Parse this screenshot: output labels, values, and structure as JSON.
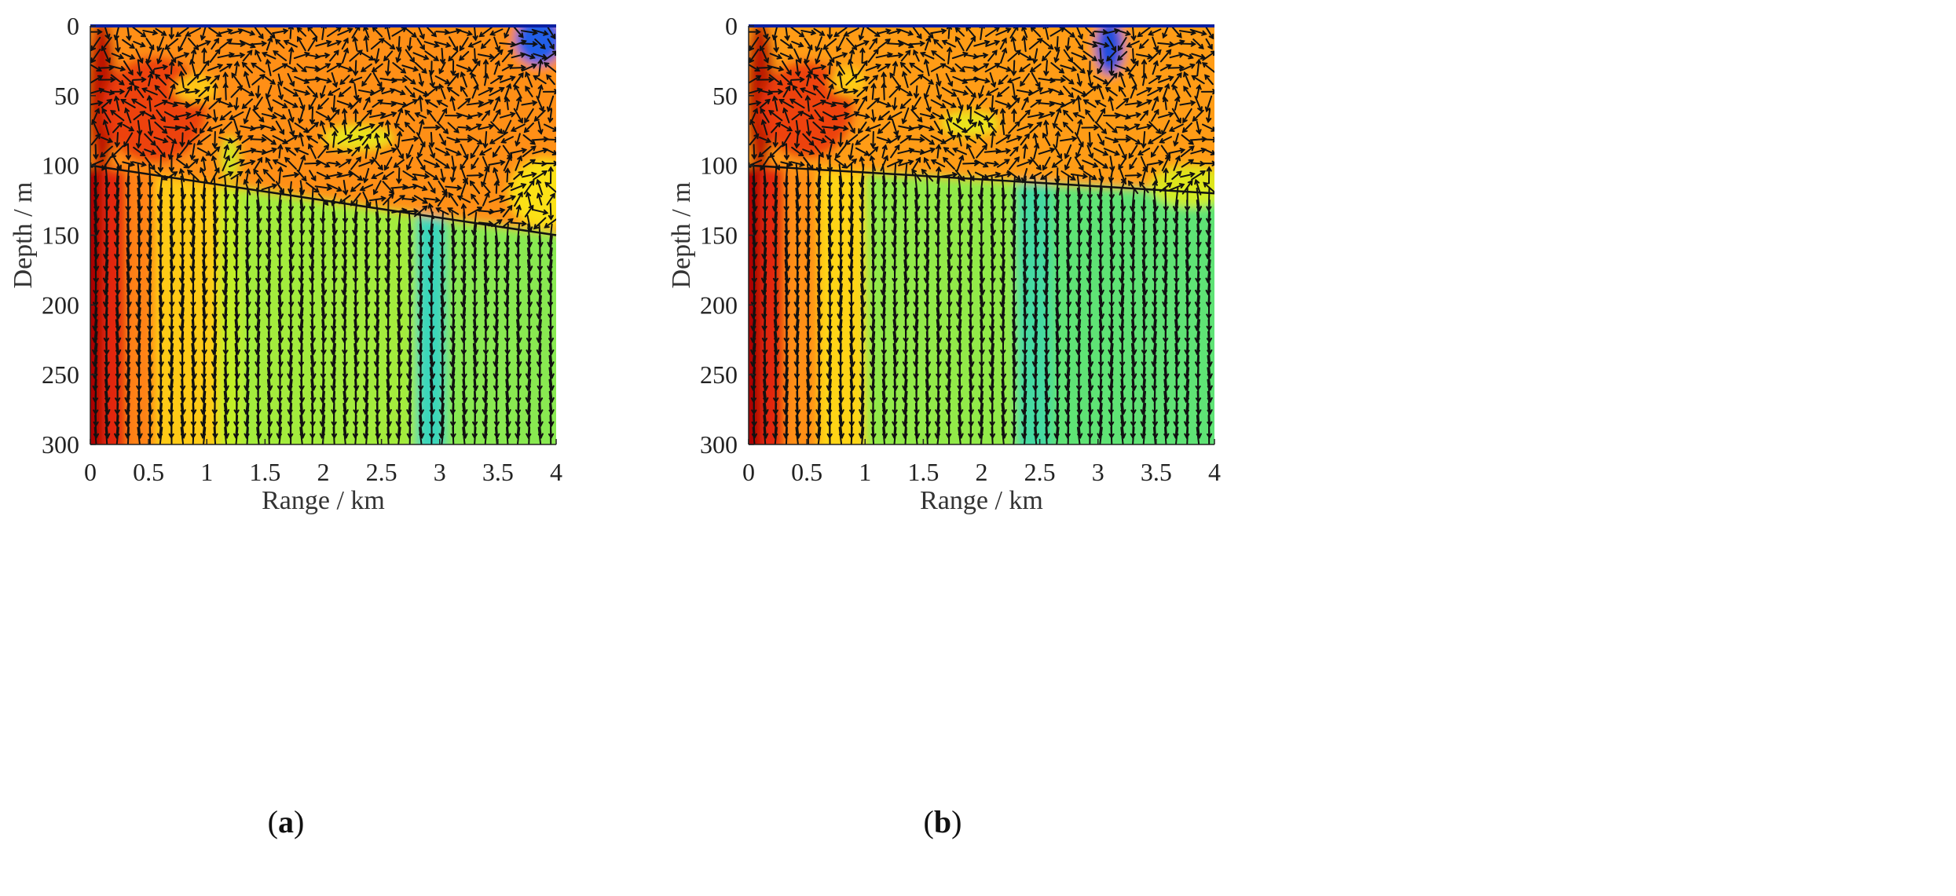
{
  "chart_data": [
    {
      "type": "heatmap",
      "panel_label": "a",
      "xlabel": "Range / km",
      "ylabel": "Depth / m",
      "xlim": [
        0,
        4
      ],
      "ylim": [
        300,
        0
      ],
      "x_ticks": [
        "0",
        "0.5",
        "1",
        "1.5",
        "2",
        "2.5",
        "3",
        "3.5",
        "4"
      ],
      "y_ticks": [
        "0",
        "50",
        "100",
        "150",
        "200",
        "250",
        "300"
      ],
      "overlay": "quiver arrows",
      "interface_line": {
        "x": [
          0,
          4
        ],
        "y": [
          100,
          150
        ]
      },
      "colormap": [
        "#00008b",
        "#0a4fff",
        "#19c8ff",
        "#58e27a",
        "#b8ef2a",
        "#ffea16",
        "#ffb21a",
        "#ff6a12",
        "#e0200c",
        "#a00000"
      ],
      "upper_layer_level": 0.72,
      "lower_layer_columns": [
        {
          "x": [
            0,
            0.1
          ],
          "level": 0.98
        },
        {
          "x": [
            0.1,
            0.3
          ],
          "level": 0.88
        },
        {
          "x": [
            0.3,
            0.55
          ],
          "level": 0.74
        },
        {
          "x": [
            0.55,
            1.1
          ],
          "level": 0.62
        },
        {
          "x": [
            1.1,
            1.3
          ],
          "level": 0.46
        },
        {
          "x": [
            1.3,
            2.8
          ],
          "level": 0.42
        },
        {
          "x": [
            2.8,
            3.05
          ],
          "level": 0.28
        },
        {
          "x": [
            3.05,
            4
          ],
          "level": 0.39
        }
      ],
      "upper_features": [
        {
          "x": 0.1,
          "depth": 50,
          "level": 0.96,
          "rx": 0.12,
          "ry": 55
        },
        {
          "x": 0.55,
          "depth": 60,
          "level": 0.85,
          "rx": 0.45,
          "ry": 38
        },
        {
          "x": 0.9,
          "depth": 45,
          "level": 0.6,
          "rx": 0.18,
          "ry": 10
        },
        {
          "x": 1.2,
          "depth": 95,
          "level": 0.48,
          "rx": 0.08,
          "ry": 16
        },
        {
          "x": 2.3,
          "depth": 80,
          "level": 0.52,
          "rx": 0.3,
          "ry": 9
        },
        {
          "x": 3.85,
          "depth": 10,
          "level": 0.12,
          "rx": 0.2,
          "ry": 18
        },
        {
          "x": 3.9,
          "depth": 120,
          "level": 0.55,
          "rx": 0.3,
          "ry": 25
        }
      ]
    },
    {
      "type": "heatmap",
      "panel_label": "b",
      "xlabel": "Range / km",
      "ylabel": "Depth / m",
      "xlim": [
        0,
        4
      ],
      "ylim": [
        300,
        0
      ],
      "x_ticks": [
        "0",
        "0.5",
        "1",
        "1.5",
        "2",
        "2.5",
        "3",
        "3.5",
        "4"
      ],
      "y_ticks": [
        "0",
        "50",
        "100",
        "150",
        "200",
        "250",
        "300"
      ],
      "overlay": "quiver arrows",
      "interface_line": {
        "x": [
          0,
          4
        ],
        "y": [
          100,
          120
        ]
      },
      "colormap": [
        "#00008b",
        "#0a4fff",
        "#19c8ff",
        "#58e27a",
        "#b8ef2a",
        "#ffea16",
        "#ffb21a",
        "#ff6a12",
        "#e0200c",
        "#a00000"
      ],
      "upper_layer_level": 0.7,
      "lower_layer_columns": [
        {
          "x": [
            0,
            0.1
          ],
          "level": 0.98
        },
        {
          "x": [
            0.1,
            0.3
          ],
          "level": 0.88
        },
        {
          "x": [
            0.3,
            0.6
          ],
          "level": 0.72
        },
        {
          "x": [
            0.6,
            1.0
          ],
          "level": 0.6
        },
        {
          "x": [
            1.0,
            2.3
          ],
          "level": 0.4
        },
        {
          "x": [
            2.3,
            2.6
          ],
          "level": 0.3
        },
        {
          "x": [
            2.6,
            4
          ],
          "level": 0.34
        }
      ],
      "upper_features": [
        {
          "x": 0.1,
          "depth": 50,
          "level": 0.96,
          "rx": 0.12,
          "ry": 55
        },
        {
          "x": 0.5,
          "depth": 60,
          "level": 0.85,
          "rx": 0.4,
          "ry": 35
        },
        {
          "x": 0.85,
          "depth": 40,
          "level": 0.6,
          "rx": 0.15,
          "ry": 10
        },
        {
          "x": 1.9,
          "depth": 70,
          "level": 0.52,
          "rx": 0.25,
          "ry": 9
        },
        {
          "x": 3.1,
          "depth": 15,
          "level": 0.1,
          "rx": 0.12,
          "ry": 20
        },
        {
          "x": 3.8,
          "depth": 115,
          "level": 0.5,
          "rx": 0.35,
          "ry": 15
        }
      ]
    }
  ]
}
